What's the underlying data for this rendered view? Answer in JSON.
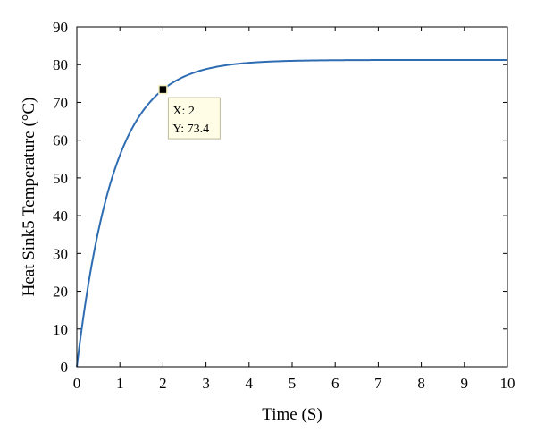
{
  "chart_data": {
    "type": "line",
    "xlabel": "Time (S)",
    "ylabel": "Heat Sink5 Temperature (°C)",
    "xlim": [
      0,
      10
    ],
    "ylim": [
      0,
      90
    ],
    "xticks": [
      0,
      1,
      2,
      3,
      4,
      5,
      6,
      7,
      8,
      9,
      10
    ],
    "yticks": [
      0,
      10,
      20,
      30,
      40,
      50,
      60,
      70,
      80,
      90
    ],
    "grid": false,
    "series": [
      {
        "color": "#2f6db3",
        "x": [
          0,
          0.25,
          0.5,
          0.75,
          1,
          1.25,
          1.5,
          1.75,
          2,
          2.5,
          3,
          3.5,
          4,
          4.5,
          5,
          5.5,
          6,
          7,
          8,
          9,
          10
        ],
        "y": [
          0,
          19.6,
          34.8,
          46.6,
          55.8,
          62.9,
          68.5,
          72.9,
          73.4,
          77.3,
          79.3,
          80.3,
          80.8,
          81.0,
          81.15,
          81.2,
          81.22,
          81.25,
          81.25,
          81.25,
          81.25
        ]
      }
    ],
    "datatip": {
      "x": 2,
      "y": 73.4,
      "x_text": "X: 2",
      "y_text": "Y: 73.4"
    }
  }
}
